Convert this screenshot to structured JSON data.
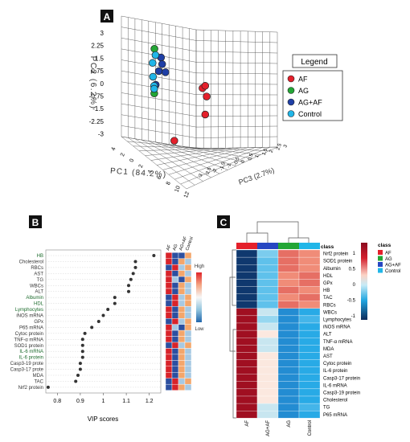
{
  "panels": {
    "a": {
      "letter": "A"
    },
    "b": {
      "letter": "B"
    },
    "c": {
      "letter": "C"
    }
  },
  "chart_data": [
    {
      "type": "scatter",
      "panel": "A",
      "xlabel": "PC1 (84.2%)",
      "ylabel": "PC2 (6.2%)",
      "zlabel": "PC3 (2.7%)",
      "y_ticks": [
        "3",
        "2.25",
        "1.5",
        "0.75",
        "0",
        "-0.75",
        "-1.5",
        "-2.25",
        "-3"
      ],
      "x_ticks": [
        "4",
        "2",
        "0",
        "2",
        "4",
        "6",
        "8",
        "10",
        "12"
      ],
      "z_ticks": [
        "-3",
        "-2.5",
        "-2",
        "-1.5",
        "-1",
        "-0.5",
        "0",
        "0.5",
        "1",
        "1.5",
        "2",
        "2.5",
        "3"
      ],
      "legend": {
        "title": "Legend",
        "placement": "right"
      },
      "series": [
        {
          "name": "AF",
          "color": "#e4202b",
          "points": [
            [
              12,
              -0.3,
              0.5
            ],
            [
              11,
              0.2,
              0
            ],
            [
              11.5,
              0.3,
              0.6
            ],
            [
              12,
              -1.3,
              -0.2
            ],
            [
              2,
              -3.3,
              0
            ]
          ]
        },
        {
          "name": "AG",
          "color": "#23a635",
          "points": [
            [
              -4.2,
              1.9,
              -0.2
            ],
            [
              -4.5,
              -0.8,
              0.2
            ]
          ]
        },
        {
          "name": "AG+AF",
          "color": "#1f3fa6",
          "points": [
            [
              -2.5,
              1.4,
              0.4
            ],
            [
              -2,
              1.05,
              0.2
            ],
            [
              -3,
              0.6,
              0.1
            ],
            [
              -1,
              0.6,
              0.3
            ],
            [
              -4,
              -0.25,
              0.1
            ]
          ]
        },
        {
          "name": "Control",
          "color": "#21b6e8",
          "points": [
            [
              -3.8,
              1.55,
              -0.3
            ],
            [
              -5,
              1.0,
              0.1
            ],
            [
              -4.8,
              0.2,
              0.0
            ],
            [
              -4.3,
              -0.3,
              -0.2
            ],
            [
              -4.4,
              -0.5,
              0.0
            ]
          ]
        }
      ]
    },
    {
      "type": "scatter",
      "panel": "B",
      "xlabel": "VIP scores",
      "xlim": [
        0.75,
        1.25
      ],
      "x_ticks": [
        0.8,
        0.9,
        1.0,
        1.1,
        1.2
      ],
      "x_tick_labels": [
        "0.8",
        "0.9",
        "1",
        "1.1",
        "1.2"
      ],
      "columns": [
        "AF",
        "AG",
        "AG+AF",
        "Control"
      ],
      "scale": {
        "high": "High",
        "low": "Low"
      },
      "items": [
        {
          "label": "HB",
          "vip": 1.22,
          "cells": [
            1,
            0,
            0,
            0.7
          ]
        },
        {
          "label": "Cholesterol",
          "vip": 1.14,
          "cells": [
            1,
            0,
            0.7,
            0.3
          ]
        },
        {
          "label": "RBCs",
          "vip": 1.14,
          "cells": [
            0,
            1,
            0.3,
            0.7
          ]
        },
        {
          "label": "AST",
          "vip": 1.13,
          "cells": [
            1,
            0,
            0.7,
            0.3
          ]
        },
        {
          "label": "TG",
          "vip": 1.12,
          "cells": [
            1,
            0.3,
            0,
            0.7
          ]
        },
        {
          "label": "WBCs",
          "vip": 1.11,
          "cells": [
            1,
            0,
            0.7,
            0.3
          ]
        },
        {
          "label": "ALT",
          "vip": 1.11,
          "cells": [
            1,
            0,
            0.7,
            0.3
          ]
        },
        {
          "label": "Albumin",
          "vip": 1.05,
          "cells": [
            0,
            1,
            0.3,
            0.7
          ]
        },
        {
          "label": "HDL",
          "vip": 1.05,
          "cells": [
            0,
            1,
            0.3,
            0.7
          ]
        },
        {
          "label": "Lymphocytes",
          "vip": 1.02,
          "cells": [
            1,
            0,
            0.7,
            0.3
          ]
        },
        {
          "label": "iNOS mRNA",
          "vip": 1.0,
          "cells": [
            1,
            0,
            0.7,
            0.3
          ]
        },
        {
          "label": "GPx",
          "vip": 0.98,
          "cells": [
            0,
            1,
            0.3,
            0.7
          ]
        },
        {
          "label": "P65 mRNA",
          "vip": 0.95,
          "cells": [
            1,
            0.3,
            0,
            0.7
          ]
        },
        {
          "label": "Cytoc protein",
          "vip": 0.92,
          "cells": [
            1,
            0,
            0.7,
            0.3
          ]
        },
        {
          "label": "TNF-α mRNA",
          "vip": 0.91,
          "cells": [
            1,
            0,
            0.7,
            0.3
          ]
        },
        {
          "label": "SOD1 protein",
          "vip": 0.91,
          "cells": [
            0,
            1,
            0.3,
            0.7
          ]
        },
        {
          "label": "IL-6 mRNA",
          "vip": 0.91,
          "cells": [
            1,
            0,
            0.7,
            0.3
          ]
        },
        {
          "label": "IL-6 protein",
          "vip": 0.91,
          "cells": [
            1,
            0,
            0.7,
            0.3
          ]
        },
        {
          "label": "Casp3-19 prote",
          "vip": 0.9,
          "cells": [
            1,
            0,
            0.7,
            0.3
          ]
        },
        {
          "label": "Casp3-17 prote",
          "vip": 0.9,
          "cells": [
            1,
            0,
            0.7,
            0.3
          ]
        },
        {
          "label": "MDA",
          "vip": 0.89,
          "cells": [
            1,
            0,
            0.7,
            0.3
          ]
        },
        {
          "label": "TAC",
          "vip": 0.88,
          "cells": [
            0,
            1,
            0.3,
            0.7
          ]
        },
        {
          "label": "Nrf2 protein",
          "vip": 0.76,
          "cells": [
            0,
            1,
            0.7,
            0.3
          ]
        }
      ]
    },
    {
      "type": "heatmap",
      "panel": "C",
      "class_label": "class",
      "columns": [
        "AF",
        "AG+AF",
        "AG",
        "Control"
      ],
      "column_colors": [
        "#e4202b",
        "#2747c2",
        "#23a635",
        "#21b6e8"
      ],
      "legend": {
        "title": "class",
        "items": [
          {
            "name": "AF",
            "color": "#e4202b"
          },
          {
            "name": "AG",
            "color": "#23a635"
          },
          {
            "name": "AG+AF",
            "color": "#2747c2"
          },
          {
            "name": "Control",
            "color": "#21b6e8"
          }
        ]
      },
      "colorbar": {
        "ticks": [
          "1",
          "0.5",
          "0",
          "-0.5",
          "-1"
        ],
        "min": -1.5,
        "max": 1.5
      },
      "rows": [
        {
          "label": "Nrf2 protein",
          "values": [
            -1.4,
            -0.3,
            0.9,
            0.8
          ]
        },
        {
          "label": "SOD1 protein",
          "values": [
            -1.4,
            -0.4,
            0.9,
            0.8
          ]
        },
        {
          "label": "Albumin",
          "values": [
            -1.4,
            -0.4,
            0.9,
            0.8
          ]
        },
        {
          "label": "HDL",
          "values": [
            -1.4,
            -0.4,
            0.8,
            0.9
          ]
        },
        {
          "label": "GPx",
          "values": [
            -1.4,
            -0.4,
            0.8,
            0.9
          ]
        },
        {
          "label": "HB",
          "values": [
            -1.4,
            -0.4,
            0.9,
            0.8
          ]
        },
        {
          "label": "TAC",
          "values": [
            -1.4,
            -0.4,
            0.8,
            0.9
          ]
        },
        {
          "label": "RBCs",
          "values": [
            -1.4,
            -0.4,
            0.9,
            0.8
          ]
        },
        {
          "label": "WBCs",
          "values": [
            1.4,
            -0.1,
            -0.8,
            -0.6
          ]
        },
        {
          "label": "Lymphocytes",
          "values": [
            1.4,
            -0.2,
            -0.8,
            -0.5
          ]
        },
        {
          "label": "iNOS mRNA",
          "values": [
            1.4,
            -0.1,
            -0.8,
            -0.6
          ]
        },
        {
          "label": "ALT",
          "values": [
            1.4,
            0.1,
            -0.8,
            -0.6
          ]
        },
        {
          "label": "TNF-α mRNA",
          "values": [
            1.4,
            -0.1,
            -0.8,
            -0.6
          ]
        },
        {
          "label": "MDA",
          "values": [
            1.4,
            -0.1,
            -0.8,
            -0.6
          ]
        },
        {
          "label": "AST",
          "values": [
            1.4,
            0.1,
            -0.8,
            -0.6
          ]
        },
        {
          "label": "Cytoc protein",
          "values": [
            1.4,
            0.1,
            -0.8,
            -0.6
          ]
        },
        {
          "label": "IL-6 protein",
          "values": [
            1.4,
            0.1,
            -0.8,
            -0.6
          ]
        },
        {
          "label": "Casp3-17 protein",
          "values": [
            1.4,
            0.1,
            -0.8,
            -0.6
          ]
        },
        {
          "label": "IL-6 mRNA",
          "values": [
            1.4,
            0.1,
            -0.8,
            -0.6
          ]
        },
        {
          "label": "Casp3-19 protein",
          "values": [
            1.4,
            0.1,
            -0.8,
            -0.6
          ]
        },
        {
          "label": "Cholesterol",
          "values": [
            1.4,
            0.1,
            -0.8,
            -0.6
          ]
        },
        {
          "label": "TG",
          "values": [
            1.4,
            -0.1,
            -0.8,
            -0.5
          ]
        },
        {
          "label": "P65 mRNA",
          "values": [
            1.4,
            -0.1,
            -0.8,
            -0.6
          ]
        }
      ]
    }
  ]
}
